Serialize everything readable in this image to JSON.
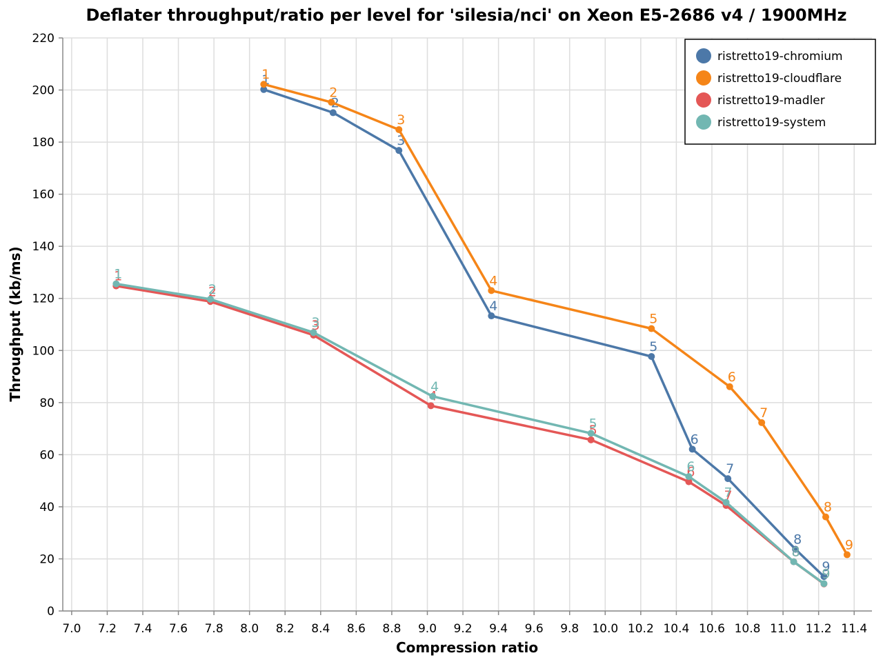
{
  "chart_data": {
    "type": "line",
    "title": "Deflater throughput/ratio per level for 'silesia/nci' on Xeon E5-2686 v4 / 1900MHz",
    "xlabel": "Compression ratio",
    "ylabel": "Throughput (kb/ms)",
    "xlim": [
      6.95,
      11.5
    ],
    "ylim": [
      0,
      220
    ],
    "xticks": [
      "7.0",
      "7.2",
      "7.4",
      "7.6",
      "7.8",
      "8.0",
      "8.2",
      "8.4",
      "8.6",
      "8.8",
      "9.0",
      "9.2",
      "9.4",
      "9.6",
      "9.8",
      "10.0",
      "10.2",
      "10.4",
      "10.6",
      "10.8",
      "11.0",
      "11.2",
      "11.4"
    ],
    "yticks": [
      "0",
      "20",
      "40",
      "60",
      "80",
      "100",
      "120",
      "140",
      "160",
      "180",
      "200",
      "220"
    ],
    "grid": true,
    "legend_position": "top-right",
    "series": [
      {
        "name": "ristretto19-chromium",
        "color": "#4c78a8",
        "points": [
          {
            "x": 8.08,
            "y": 200.2,
            "label": "1"
          },
          {
            "x": 8.47,
            "y": 191.3,
            "label": "2"
          },
          {
            "x": 8.84,
            "y": 176.8,
            "label": "3"
          },
          {
            "x": 9.36,
            "y": 113.3,
            "label": "4"
          },
          {
            "x": 10.26,
            "y": 97.7,
            "label": "5"
          },
          {
            "x": 10.49,
            "y": 62.1,
            "label": "6"
          },
          {
            "x": 10.69,
            "y": 50.8,
            "label": "7"
          },
          {
            "x": 11.07,
            "y": 23.7,
            "label": "8"
          },
          {
            "x": 11.23,
            "y": 13.2,
            "label": "9"
          }
        ]
      },
      {
        "name": "ristretto19-cloudflare",
        "color": "#f58518",
        "points": [
          {
            "x": 8.08,
            "y": 202.2,
            "label": "1"
          },
          {
            "x": 8.46,
            "y": 195.3,
            "label": "2"
          },
          {
            "x": 8.84,
            "y": 184.8,
            "label": "3"
          },
          {
            "x": 9.36,
            "y": 123.0,
            "label": "4"
          },
          {
            "x": 10.26,
            "y": 108.4,
            "label": "5"
          },
          {
            "x": 10.7,
            "y": 86.1,
            "label": "6"
          },
          {
            "x": 10.88,
            "y": 72.3,
            "label": "7"
          },
          {
            "x": 11.24,
            "y": 36.1,
            "label": "8"
          },
          {
            "x": 11.36,
            "y": 21.6,
            "label": "9"
          }
        ]
      },
      {
        "name": "ristretto19-madler",
        "color": "#e45756",
        "points": [
          {
            "x": 7.25,
            "y": 124.8,
            "label": "1"
          },
          {
            "x": 7.78,
            "y": 118.8,
            "label": "2"
          },
          {
            "x": 8.36,
            "y": 105.9,
            "label": "3"
          },
          {
            "x": 9.02,
            "y": 78.8,
            "label": "4"
          },
          {
            "x": 9.92,
            "y": 65.7,
            "label": "5"
          },
          {
            "x": 10.47,
            "y": 49.6,
            "label": "6"
          },
          {
            "x": 10.68,
            "y": 40.5,
            "label": "7"
          },
          {
            "x": 11.06,
            "y": 18.9,
            "label": "8"
          },
          {
            "x": 11.23,
            "y": 10.4,
            "label": "9"
          }
        ]
      },
      {
        "name": "ristretto19-system",
        "color": "#72b7b2",
        "points": [
          {
            "x": 7.25,
            "y": 125.6,
            "label": "1"
          },
          {
            "x": 7.78,
            "y": 119.7,
            "label": "2"
          },
          {
            "x": 8.36,
            "y": 106.9,
            "label": "3"
          },
          {
            "x": 9.03,
            "y": 82.4,
            "label": "4"
          },
          {
            "x": 9.92,
            "y": 68.2,
            "label": "5"
          },
          {
            "x": 10.47,
            "y": 51.6,
            "label": "6"
          },
          {
            "x": 10.68,
            "y": 41.7,
            "label": "7"
          },
          {
            "x": 11.06,
            "y": 18.9,
            "label": "8"
          },
          {
            "x": 11.23,
            "y": 10.5,
            "label": "9"
          }
        ]
      }
    ]
  }
}
